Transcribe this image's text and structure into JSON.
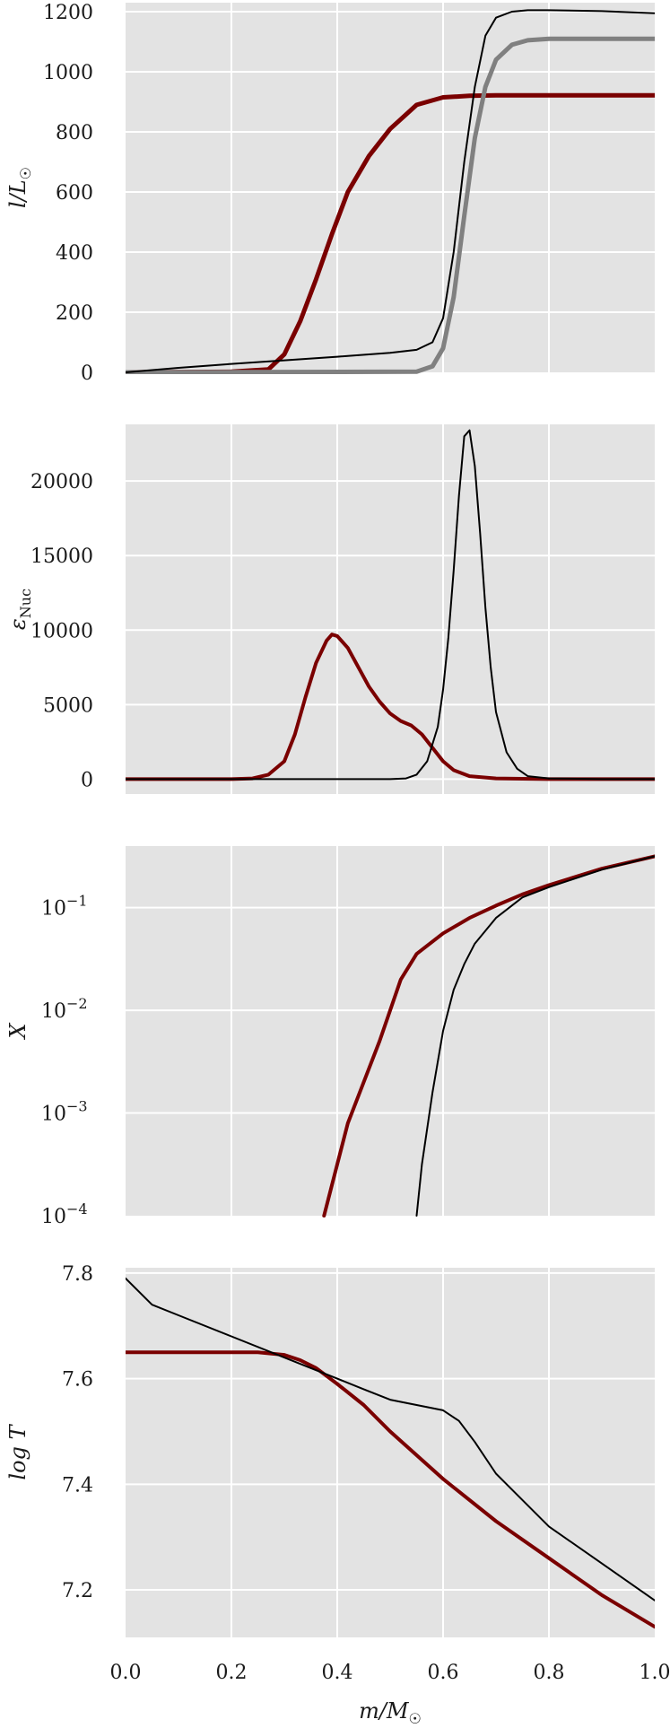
{
  "figure": {
    "xlabel": "m/M☉",
    "xlim": [
      0.0,
      1.0
    ],
    "xticks": [
      0.0,
      0.2,
      0.4,
      0.6,
      0.8,
      1.0
    ],
    "xtick_labels": [
      "0.0",
      "0.2",
      "0.4",
      "0.6",
      "0.8",
      "1.0"
    ]
  },
  "chart_data": [
    {
      "type": "line",
      "ylabel": "l/L☉",
      "ylim": [
        0,
        1230
      ],
      "yscale": "linear",
      "yticks": [
        0,
        200,
        400,
        600,
        800,
        1000,
        1200
      ],
      "ytick_labels": [
        "0",
        "200",
        "400",
        "600",
        "800",
        "1000",
        "1200"
      ],
      "grid": true,
      "series": [
        {
          "color": "#7a0000",
          "width": 5,
          "x": [
            0.0,
            0.2,
            0.27,
            0.3,
            0.33,
            0.36,
            0.39,
            0.42,
            0.46,
            0.5,
            0.55,
            0.6,
            0.65,
            0.7,
            0.8,
            1.0
          ],
          "y": [
            0,
            2,
            10,
            60,
            170,
            310,
            460,
            600,
            720,
            810,
            890,
            915,
            920,
            922,
            922,
            922
          ]
        },
        {
          "color": "#808080",
          "width": 5,
          "x": [
            0.0,
            0.55,
            0.58,
            0.6,
            0.62,
            0.64,
            0.66,
            0.68,
            0.7,
            0.73,
            0.76,
            0.8,
            1.0
          ],
          "y": [
            0,
            2,
            20,
            80,
            250,
            520,
            780,
            950,
            1040,
            1090,
            1105,
            1110,
            1110
          ]
        },
        {
          "color": "#000000",
          "width": 2,
          "x": [
            0.0,
            0.1,
            0.2,
            0.3,
            0.4,
            0.5,
            0.55,
            0.58,
            0.6,
            0.62,
            0.64,
            0.66,
            0.68,
            0.7,
            0.73,
            0.76,
            0.8,
            0.9,
            1.0
          ],
          "y": [
            0,
            15,
            28,
            40,
            52,
            65,
            75,
            100,
            180,
            400,
            700,
            950,
            1120,
            1180,
            1200,
            1205,
            1205,
            1202,
            1195
          ]
        }
      ]
    },
    {
      "type": "line",
      "ylabel": "εNuc",
      "ylim": [
        -1000,
        23800
      ],
      "yscale": "linear",
      "yticks": [
        0,
        5000,
        10000,
        15000,
        20000
      ],
      "ytick_labels": [
        "0",
        "5000",
        "10000",
        "15000",
        "20000"
      ],
      "grid": true,
      "series": [
        {
          "color": "#7a0000",
          "width": 4,
          "x": [
            0.0,
            0.2,
            0.24,
            0.27,
            0.3,
            0.32,
            0.34,
            0.36,
            0.38,
            0.39,
            0.4,
            0.42,
            0.44,
            0.46,
            0.48,
            0.5,
            0.52,
            0.54,
            0.56,
            0.58,
            0.6,
            0.62,
            0.65,
            0.7,
            0.8,
            1.0
          ],
          "y": [
            0,
            0,
            50,
            300,
            1200,
            3000,
            5500,
            7800,
            9300,
            9700,
            9600,
            8800,
            7500,
            6200,
            5200,
            4400,
            3900,
            3600,
            3000,
            2100,
            1200,
            600,
            200,
            50,
            0,
            0
          ]
        },
        {
          "color": "#000000",
          "width": 2,
          "x": [
            0.0,
            0.5,
            0.53,
            0.55,
            0.57,
            0.59,
            0.6,
            0.61,
            0.62,
            0.63,
            0.64,
            0.65,
            0.66,
            0.67,
            0.68,
            0.69,
            0.7,
            0.72,
            0.74,
            0.76,
            0.8,
            0.9,
            1.0
          ],
          "y": [
            0,
            0,
            50,
            300,
            1200,
            3500,
            6000,
            9500,
            14000,
            19000,
            23000,
            23400,
            21000,
            16500,
            11500,
            7500,
            4500,
            1800,
            700,
            200,
            50,
            0,
            0
          ]
        }
      ]
    },
    {
      "type": "line",
      "ylabel": "X",
      "ylim": [
        -4,
        -0.4
      ],
      "yscale": "log",
      "yticks": [
        -4,
        -3,
        -2,
        -1
      ],
      "ytick_labels": [
        "10",
        "10",
        "10",
        "10"
      ],
      "ytick_exponents": [
        "−4",
        "−3",
        "−2",
        "−1"
      ],
      "grid": true,
      "series": [
        {
          "color": "#7a0000",
          "width": 4,
          "x": [
            0.375,
            0.4,
            0.42,
            0.45,
            0.48,
            0.5,
            0.52,
            0.55,
            0.6,
            0.65,
            0.7,
            0.75,
            0.8,
            0.9,
            1.0
          ],
          "y": [
            -4.0,
            -3.5,
            -3.1,
            -2.7,
            -2.3,
            -2.0,
            -1.7,
            -1.45,
            -1.25,
            -1.1,
            -0.98,
            -0.87,
            -0.78,
            -0.62,
            -0.5
          ]
        },
        {
          "color": "#000000",
          "width": 2,
          "x": [
            0.55,
            0.56,
            0.58,
            0.6,
            0.62,
            0.64,
            0.66,
            0.7,
            0.75,
            0.8,
            0.9,
            1.0
          ],
          "y": [
            -4.0,
            -3.5,
            -2.8,
            -2.2,
            -1.8,
            -1.55,
            -1.35,
            -1.1,
            -0.9,
            -0.8,
            -0.63,
            -0.5
          ]
        }
      ]
    },
    {
      "type": "line",
      "ylabel": "log T",
      "ylim": [
        7.11,
        7.81
      ],
      "yscale": "linear",
      "yticks": [
        7.2,
        7.4,
        7.6,
        7.8
      ],
      "ytick_labels": [
        "7.2",
        "7.4",
        "7.6",
        "7.8"
      ],
      "grid": true,
      "series": [
        {
          "color": "#7a0000",
          "width": 4,
          "x": [
            0.0,
            0.2,
            0.25,
            0.3,
            0.33,
            0.36,
            0.4,
            0.45,
            0.5,
            0.6,
            0.7,
            0.8,
            0.9,
            1.0
          ],
          "y": [
            7.65,
            7.65,
            7.65,
            7.645,
            7.635,
            7.62,
            7.59,
            7.55,
            7.5,
            7.41,
            7.33,
            7.26,
            7.19,
            7.13
          ]
        },
        {
          "color": "#000000",
          "width": 2,
          "x": [
            0.0,
            0.05,
            0.1,
            0.2,
            0.3,
            0.4,
            0.45,
            0.5,
            0.55,
            0.6,
            0.63,
            0.66,
            0.7,
            0.8,
            0.9,
            1.0
          ],
          "y": [
            7.79,
            7.74,
            7.72,
            7.68,
            7.64,
            7.6,
            7.58,
            7.56,
            7.55,
            7.54,
            7.52,
            7.48,
            7.42,
            7.32,
            7.25,
            7.18
          ]
        }
      ]
    }
  ]
}
